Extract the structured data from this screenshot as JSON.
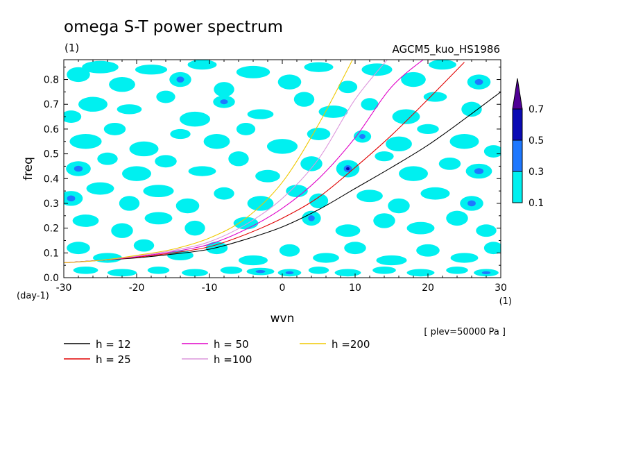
{
  "chart_data": {
    "type": "heatmap",
    "title": "omega S-T power spectrum",
    "subtitle_left": "(1)",
    "subtitle_right": "AGCM5_kuo_HS1986",
    "xlabel": "wvn",
    "ylabel": "freq",
    "x_unit": "(1)",
    "y_unit": "(day-1)",
    "annotation": "[ plev=50000 Pa ]",
    "xlim": [
      -30,
      30
    ],
    "ylim": [
      0.0,
      0.88
    ],
    "x_ticks": [
      -30,
      -20,
      -10,
      0,
      10,
      20,
      30
    ],
    "x_tick_labels": [
      "-30",
      "-20",
      "-10",
      "0",
      "10",
      "20",
      "30"
    ],
    "y_ticks": [
      0.0,
      0.1,
      0.2,
      0.3,
      0.4,
      0.5,
      0.6,
      0.7,
      0.8
    ],
    "y_tick_labels": [
      "0.0",
      "0.1",
      "0.2",
      "0.3",
      "0.4",
      "0.5",
      "0.6",
      "0.7",
      "0.8"
    ],
    "colorbar": {
      "levels": [
        0.1,
        0.3,
        0.5,
        0.7
      ],
      "labels": [
        "0.1",
        "0.3",
        "0.5",
        "0.7"
      ],
      "colors": [
        "#00f0f0",
        "#1e78ff",
        "#0a0ab4",
        "#500096"
      ]
    },
    "contour_fill": {
      "colors": [
        "#00f0f0",
        "#1e78ff",
        "#0a0ab4"
      ],
      "blobs": [
        [
          -28,
          0.82,
          1.6,
          0.03,
          0
        ],
        [
          -25,
          0.85,
          2.5,
          0.025,
          0
        ],
        [
          -22,
          0.78,
          1.8,
          0.03,
          0
        ],
        [
          -18,
          0.84,
          2.2,
          0.02,
          0
        ],
        [
          -14,
          0.8,
          1.5,
          0.03,
          1
        ],
        [
          -11,
          0.86,
          2.0,
          0.02,
          0
        ],
        [
          -8,
          0.76,
          1.4,
          0.03,
          0
        ],
        [
          -4,
          0.83,
          2.3,
          0.025,
          0
        ],
        [
          1,
          0.79,
          1.6,
          0.03,
          0
        ],
        [
          5,
          0.85,
          2.0,
          0.02,
          0
        ],
        [
          9,
          0.77,
          1.3,
          0.025,
          0
        ],
        [
          13,
          0.84,
          2.1,
          0.025,
          0
        ],
        [
          18,
          0.8,
          1.7,
          0.03,
          0
        ],
        [
          22,
          0.86,
          1.9,
          0.02,
          0
        ],
        [
          27,
          0.79,
          1.6,
          0.03,
          1
        ],
        [
          -29,
          0.65,
          1.4,
          0.025,
          0
        ],
        [
          -26,
          0.7,
          2.0,
          0.03,
          0
        ],
        [
          -21,
          0.68,
          1.7,
          0.02,
          0
        ],
        [
          -16,
          0.73,
          1.3,
          0.025,
          0
        ],
        [
          -12,
          0.64,
          2.1,
          0.03,
          0
        ],
        [
          -8,
          0.71,
          1.5,
          0.025,
          1
        ],
        [
          -3,
          0.66,
          1.8,
          0.02,
          0
        ],
        [
          3,
          0.72,
          1.4,
          0.03,
          0
        ],
        [
          7,
          0.67,
          2.0,
          0.025,
          0
        ],
        [
          12,
          0.7,
          1.2,
          0.025,
          0
        ],
        [
          17,
          0.65,
          1.9,
          0.03,
          0
        ],
        [
          21,
          0.73,
          1.6,
          0.02,
          0
        ],
        [
          26,
          0.68,
          1.4,
          0.03,
          0
        ],
        [
          -27,
          0.55,
          2.2,
          0.03,
          0
        ],
        [
          -23,
          0.6,
          1.5,
          0.025,
          0
        ],
        [
          -19,
          0.52,
          2.0,
          0.03,
          0
        ],
        [
          -14,
          0.58,
          1.4,
          0.02,
          0
        ],
        [
          -9,
          0.55,
          1.8,
          0.03,
          0
        ],
        [
          -5,
          0.6,
          1.3,
          0.025,
          0
        ],
        [
          0,
          0.53,
          2.1,
          0.03,
          0
        ],
        [
          5,
          0.58,
          1.6,
          0.025,
          0
        ],
        [
          11,
          0.57,
          1.2,
          0.025,
          1
        ],
        [
          16,
          0.54,
          1.8,
          0.03,
          0
        ],
        [
          20,
          0.6,
          1.5,
          0.02,
          0
        ],
        [
          25,
          0.55,
          2.0,
          0.03,
          0
        ],
        [
          29,
          0.51,
          1.3,
          0.025,
          0
        ],
        [
          -28,
          0.44,
          1.7,
          0.03,
          1
        ],
        [
          -24,
          0.48,
          1.4,
          0.025,
          0
        ],
        [
          -20,
          0.42,
          2.0,
          0.03,
          0
        ],
        [
          -16,
          0.47,
          1.5,
          0.025,
          0
        ],
        [
          -11,
          0.43,
          1.9,
          0.02,
          0
        ],
        [
          -6,
          0.48,
          1.4,
          0.03,
          0
        ],
        [
          -2,
          0.41,
          1.7,
          0.025,
          0
        ],
        [
          4,
          0.46,
          1.5,
          0.03,
          0
        ],
        [
          9,
          0.44,
          1.6,
          0.035,
          2
        ],
        [
          14,
          0.49,
          1.3,
          0.02,
          0
        ],
        [
          18,
          0.42,
          2.0,
          0.03,
          0
        ],
        [
          23,
          0.46,
          1.5,
          0.025,
          0
        ],
        [
          27,
          0.43,
          1.8,
          0.03,
          1
        ],
        [
          -29,
          0.32,
          1.6,
          0.03,
          1
        ],
        [
          -25,
          0.36,
          1.9,
          0.025,
          0
        ],
        [
          -21,
          0.3,
          1.4,
          0.03,
          0
        ],
        [
          -17,
          0.35,
          2.1,
          0.025,
          0
        ],
        [
          -13,
          0.29,
          1.6,
          0.03,
          0
        ],
        [
          -8,
          0.34,
          1.4,
          0.025,
          0
        ],
        [
          -3,
          0.3,
          1.8,
          0.03,
          0
        ],
        [
          2,
          0.35,
          1.5,
          0.025,
          0
        ],
        [
          5,
          0.31,
          1.3,
          0.03,
          0
        ],
        [
          12,
          0.33,
          1.8,
          0.025,
          0
        ],
        [
          16,
          0.29,
          1.5,
          0.03,
          0
        ],
        [
          21,
          0.34,
          2.0,
          0.025,
          0
        ],
        [
          26,
          0.3,
          1.6,
          0.03,
          1
        ],
        [
          -27,
          0.23,
          1.8,
          0.025,
          0
        ],
        [
          -22,
          0.19,
          1.5,
          0.03,
          0
        ],
        [
          -17,
          0.24,
          1.9,
          0.025,
          0
        ],
        [
          -12,
          0.2,
          1.4,
          0.03,
          0
        ],
        [
          -5,
          0.22,
          1.7,
          0.025,
          0
        ],
        [
          4,
          0.24,
          1.3,
          0.03,
          1
        ],
        [
          9,
          0.19,
          1.7,
          0.025,
          0
        ],
        [
          14,
          0.23,
          1.5,
          0.03,
          0
        ],
        [
          19,
          0.2,
          1.9,
          0.025,
          0
        ],
        [
          24,
          0.24,
          1.5,
          0.03,
          0
        ],
        [
          28,
          0.19,
          1.4,
          0.025,
          0
        ],
        [
          -28,
          0.12,
          1.6,
          0.025,
          0
        ],
        [
          -24,
          0.08,
          2.0,
          0.02,
          0
        ],
        [
          -19,
          0.13,
          1.4,
          0.025,
          0
        ],
        [
          -14,
          0.09,
          1.8,
          0.02,
          0
        ],
        [
          -9,
          0.12,
          1.5,
          0.025,
          0
        ],
        [
          -4,
          0.07,
          2.0,
          0.02,
          0
        ],
        [
          1,
          0.11,
          1.4,
          0.025,
          0
        ],
        [
          6,
          0.08,
          1.8,
          0.02,
          0
        ],
        [
          10,
          0.12,
          1.5,
          0.025,
          0
        ],
        [
          15,
          0.07,
          2.1,
          0.02,
          0
        ],
        [
          20,
          0.11,
          1.6,
          0.025,
          0
        ],
        [
          25,
          0.08,
          1.9,
          0.02,
          0
        ],
        [
          29,
          0.12,
          1.3,
          0.025,
          0
        ],
        [
          -27,
          0.03,
          1.7,
          0.015,
          0
        ],
        [
          -22,
          0.02,
          2.0,
          0.015,
          0
        ],
        [
          -17,
          0.03,
          1.5,
          0.015,
          0
        ],
        [
          -12,
          0.02,
          1.8,
          0.015,
          0
        ],
        [
          -7,
          0.03,
          1.5,
          0.015,
          0
        ],
        [
          -3,
          0.025,
          1.9,
          0.015,
          1
        ],
        [
          1,
          0.02,
          1.6,
          0.015,
          1
        ],
        [
          5,
          0.03,
          1.4,
          0.015,
          0
        ],
        [
          9,
          0.02,
          1.8,
          0.015,
          0
        ],
        [
          14,
          0.03,
          1.6,
          0.015,
          0
        ],
        [
          19,
          0.02,
          1.9,
          0.015,
          0
        ],
        [
          24,
          0.03,
          1.5,
          0.015,
          0
        ],
        [
          28,
          0.02,
          1.7,
          0.015,
          1
        ]
      ]
    },
    "series": [
      {
        "name": "h = 12",
        "color": "#000000"
      },
      {
        "name": "h = 25",
        "color": "#e00000"
      },
      {
        "name": "h = 50",
        "color": "#e000c8"
      },
      {
        "name": "h =100",
        "color": "#dc96dc"
      },
      {
        "name": "h =200",
        "color": "#f0c800"
      }
    ],
    "curves": {
      "x": [
        -30,
        -25,
        -20,
        -15,
        -10,
        -5,
        0,
        5,
        10,
        15,
        20,
        25,
        30
      ],
      "h12": [
        0.06,
        0.07,
        0.08,
        0.095,
        0.115,
        0.155,
        0.205,
        0.275,
        0.36,
        0.445,
        0.535,
        0.64,
        0.75
      ],
      "h25": [
        0.06,
        0.07,
        0.083,
        0.1,
        0.125,
        0.175,
        0.24,
        0.325,
        0.445,
        0.575,
        0.72,
        0.87
      ],
      "h50": [
        0.06,
        0.07,
        0.085,
        0.105,
        0.135,
        0.195,
        0.28,
        0.4,
        0.565,
        0.77,
        0.895
      ],
      "h100": [
        0.06,
        0.07,
        0.087,
        0.11,
        0.145,
        0.215,
        0.32,
        0.48,
        0.72,
        0.9
      ],
      "h200": [
        0.06,
        0.07,
        0.09,
        0.115,
        0.16,
        0.24,
        0.385,
        0.62,
        0.9
      ]
    },
    "curve_x_end": {
      "h12": 30,
      "h25": 24.5,
      "h50": 16.2,
      "h100": 10.5,
      "h200": 7.0
    }
  }
}
